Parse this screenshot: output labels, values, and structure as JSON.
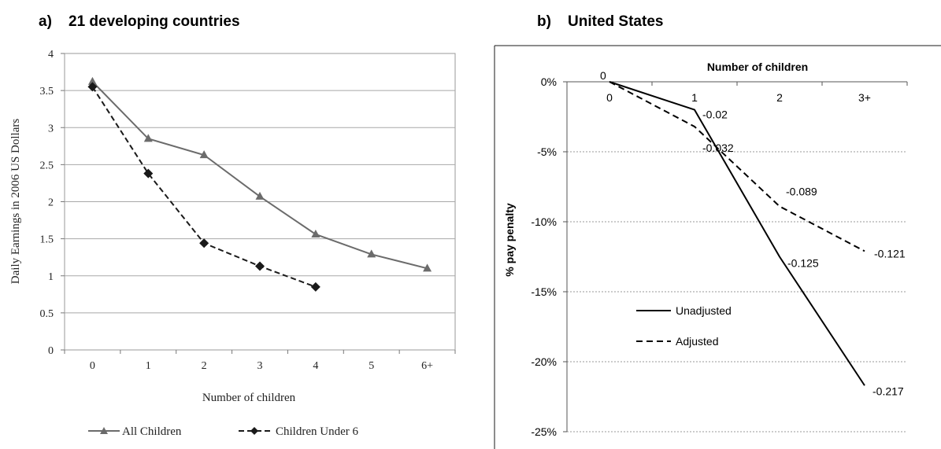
{
  "chart_data": [
    {
      "type": "line",
      "title": "a)    21 developing countries",
      "xlabel": "Number of children",
      "ylabel": "Daily Earnings in 2006 US Dollars",
      "categories": [
        "0",
        "1",
        "2",
        "3",
        "4",
        "5",
        "6+"
      ],
      "ylim": [
        0,
        4
      ],
      "yticks": [
        "0",
        "0.5",
        "1",
        "1.5",
        "2",
        "2.5",
        "3",
        "3.5",
        "4"
      ],
      "grid": true,
      "legend_position": "bottom",
      "series": [
        {
          "name": "All Children",
          "values": [
            3.62,
            2.85,
            2.63,
            2.07,
            1.56,
            1.29,
            1.1
          ],
          "color": "#6b6b6b",
          "marker": "triangle",
          "dash": "solid"
        },
        {
          "name": "Children Under 6",
          "values": [
            3.55,
            2.38,
            1.44,
            1.13,
            0.85,
            null,
            null
          ],
          "color": "#1a1a1a",
          "marker": "diamond",
          "dash": "dashed"
        }
      ]
    },
    {
      "type": "line",
      "title": "b)    United States",
      "xlabel": "Number of children",
      "ylabel": "% pay penalty",
      "categories": [
        "0",
        "1",
        "2",
        "3+"
      ],
      "ylim": [
        -0.25,
        0
      ],
      "yticks": [
        "0%",
        "-5%",
        "-10%",
        "-15%",
        "-20%",
        "-25%"
      ],
      "grid": true,
      "legend_position": "lower-left",
      "series": [
        {
          "name": "Unadjusted",
          "values": [
            0,
            -0.02,
            -0.125,
            -0.217
          ],
          "labels": [
            "0",
            "-0.02",
            "-0.125",
            "-0.217"
          ],
          "dash": "solid"
        },
        {
          "name": "Adjusted",
          "values": [
            0,
            -0.032,
            -0.089,
            -0.121
          ],
          "labels": [
            "",
            "-0.032",
            "-0.089",
            "-0.121"
          ],
          "dash": "dashed"
        }
      ]
    }
  ]
}
